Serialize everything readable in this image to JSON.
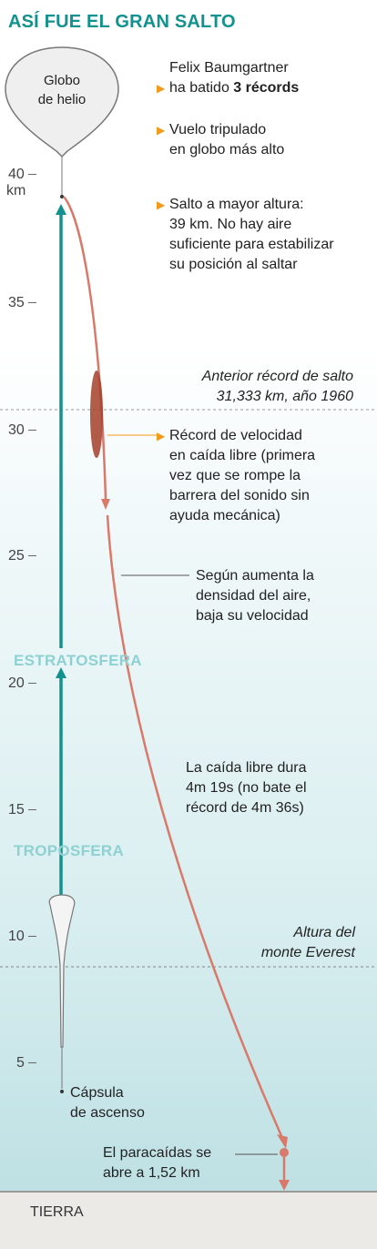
{
  "title": "ASÍ FUE EL GRAN SALTO",
  "balloon_label_1": "Globo",
  "balloon_label_2": "de helio",
  "axis": {
    "unit": "km",
    "ticks": [
      "40",
      "35",
      "30",
      "25",
      "20",
      "15",
      "10",
      "5"
    ]
  },
  "notes": {
    "intro_1": "Felix Baumgartner",
    "intro_2a": "ha batido ",
    "intro_2b": "3 récords",
    "record1_1": "Vuelo tripulado",
    "record1_2": "en globo más alto",
    "record2_1": "Salto a mayor altura:",
    "record2_2": "39 km. No hay aire",
    "record2_3": "suficiente para estabilizar",
    "record2_4": "su posición al saltar",
    "prev_1": "Anterior récord de salto",
    "prev_2": "31,333 km, año 1960",
    "record3_1": "Récord de velocidad",
    "record3_2": "en caída libre (primera",
    "record3_3": "vez que se rompe la",
    "record3_4": "barrera del sonido sin",
    "record3_5": "ayuda mecánica)",
    "density_1": "Según aumenta la",
    "density_2": "densidad del aire,",
    "density_3": "baja su velocidad",
    "freefall_1": "La caída libre dura",
    "freefall_2": "4m 19s (no bate el",
    "freefall_3": "récord de 4m 36s)",
    "everest_1": "Altura del",
    "everest_2": "monte Everest",
    "capsule_1": "Cápsula",
    "capsule_2": "de ascenso",
    "chute_1": "El paracaídas se",
    "chute_2": "abre a 1,52 km"
  },
  "layers": {
    "stratosphere": "ESTRATOSFERA",
    "troposphere": "TROPOSFERA",
    "ground": "TIERRA"
  },
  "colors": {
    "accent": "#12928f",
    "ascent_line": "#12928f",
    "fall_line": "#d9796a",
    "bullet": "#f29a1a",
    "layer_text": "#8fd1d2"
  }
}
